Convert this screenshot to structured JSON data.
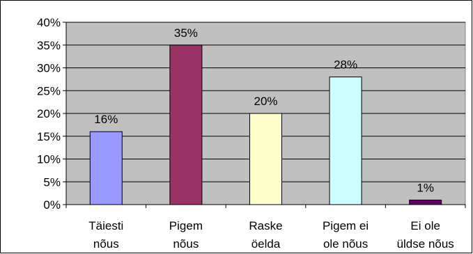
{
  "chart_data": {
    "type": "bar",
    "title": "",
    "xlabel": "",
    "ylabel": "",
    "categories": [
      [
        "Täiesti",
        "nõus"
      ],
      [
        "Pigem",
        "nõus"
      ],
      [
        "Raske",
        "öelda"
      ],
      [
        "Pigem ei",
        "ole nõus"
      ],
      [
        "Ei ole",
        "üldse nõus"
      ]
    ],
    "values": [
      16,
      35,
      20,
      28,
      1
    ],
    "data_labels": [
      "16%",
      "35%",
      "20%",
      "28%",
      "1%"
    ],
    "bar_colors": [
      "#9999ff",
      "#993366",
      "#ffffcc",
      "#ccffff",
      "#660066"
    ],
    "ylim": [
      0,
      40
    ],
    "y_ticks": [
      0,
      5,
      10,
      15,
      20,
      25,
      30,
      35,
      40
    ],
    "y_tick_labels": [
      "0%",
      "5%",
      "10%",
      "15%",
      "20%",
      "25%",
      "30%",
      "35%",
      "40%"
    ],
    "grid": true,
    "plot_background": "#c0c0c0",
    "legend": "none"
  }
}
